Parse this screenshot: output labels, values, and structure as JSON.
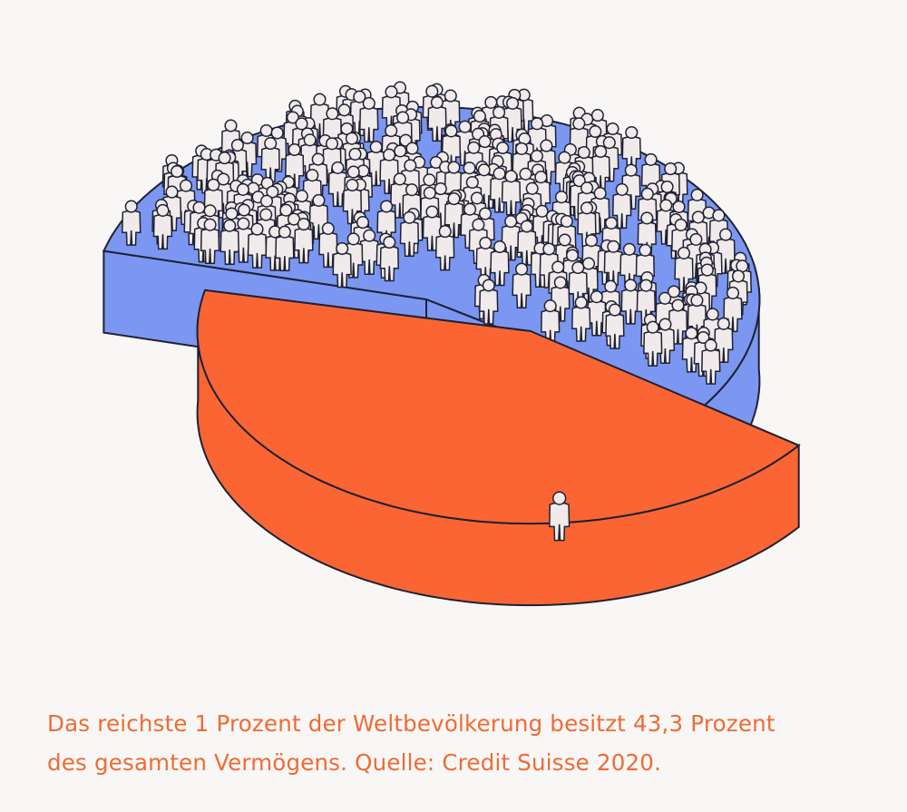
{
  "chart_data": {
    "type": "pie",
    "title": "",
    "slices": [
      {
        "label": "",
        "value": 56.7,
        "color": "#7b97f2",
        "people": 300
      },
      {
        "label": "",
        "value": 43.3,
        "color": "#fb6533",
        "people": 1
      }
    ],
    "stroke_color": "#1f2133",
    "figure_color": "#f0ebea"
  },
  "caption": {
    "line1": "Das reichste 1 Prozent der Weltbevölkerung besitzt 43,3 Prozent",
    "line2": "des gesamten Vermögens. Quelle: Credit Suisse 2020."
  }
}
